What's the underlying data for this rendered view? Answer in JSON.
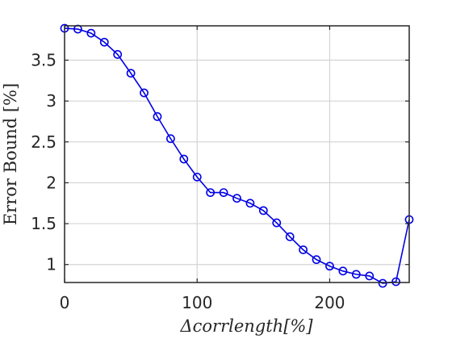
{
  "chart_data": {
    "type": "line",
    "xlabel": "Δcorrlength[%]",
    "ylabel": "Error Bound [%]",
    "xlim": [
      0,
      260
    ],
    "ylim": [
      0.78,
      3.92
    ],
    "xticks": [
      0,
      100,
      200
    ],
    "xtick_labels": [
      "0",
      "100",
      "200"
    ],
    "yticks": [
      1,
      1.5,
      2,
      2.5,
      3,
      3.5
    ],
    "ytick_labels": [
      "1",
      "1.5",
      "2",
      "2.5",
      "3",
      "3.5"
    ],
    "grid": true,
    "series": [
      {
        "color": "#0000e6",
        "marker": "circle-open",
        "x": [
          0,
          10,
          20,
          30,
          40,
          50,
          60,
          70,
          80,
          90,
          100,
          110,
          120,
          130,
          140,
          150,
          160,
          170,
          180,
          190,
          200,
          210,
          220,
          230,
          240,
          250,
          260
        ],
        "y": [
          3.89,
          3.88,
          3.83,
          3.72,
          3.57,
          3.34,
          3.1,
          2.81,
          2.54,
          2.29,
          2.07,
          1.88,
          1.88,
          1.81,
          1.75,
          1.66,
          1.51,
          1.34,
          1.18,
          1.06,
          0.98,
          0.92,
          0.88,
          0.86,
          0.77,
          0.79,
          1.55
        ]
      }
    ]
  }
}
